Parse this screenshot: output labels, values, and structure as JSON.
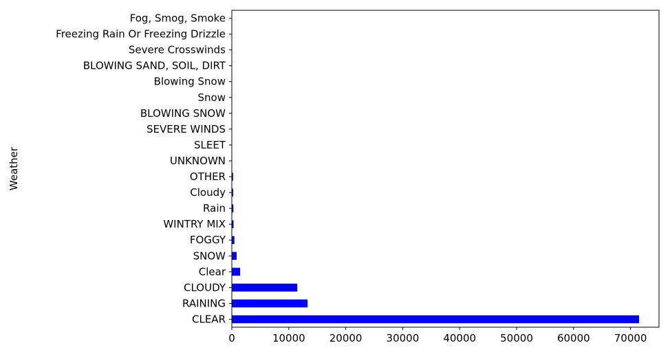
{
  "chart_data": {
    "type": "bar",
    "orientation": "horizontal",
    "categories": [
      "CLEAR",
      "RAINING",
      "CLOUDY",
      "Clear",
      "SNOW",
      "FOGGY",
      "WINTRY MIX",
      "Rain",
      "Cloudy",
      "OTHER",
      "UNKNOWN",
      "SLEET",
      "SEVERE WINDS",
      "BLOWING SNOW",
      "Snow",
      "Blowing Snow",
      "BLOWING SAND, SOIL, DIRT",
      "Severe Crosswinds",
      "Freezing Rain Or Freezing Drizzle",
      "Fog, Smog, Smoke"
    ],
    "values": [
      71500,
      13300,
      11500,
      1450,
      850,
      450,
      300,
      270,
      230,
      220,
      30,
      25,
      20,
      15,
      12,
      10,
      8,
      6,
      4,
      3
    ],
    "title": "",
    "xlabel": "",
    "ylabel": "Weather",
    "xlim": [
      0,
      75000
    ],
    "xticks": [
      0,
      10000,
      20000,
      30000,
      40000,
      50000,
      60000,
      70000
    ],
    "bar_color": "#0000ff",
    "grid": false,
    "legend": "none"
  }
}
